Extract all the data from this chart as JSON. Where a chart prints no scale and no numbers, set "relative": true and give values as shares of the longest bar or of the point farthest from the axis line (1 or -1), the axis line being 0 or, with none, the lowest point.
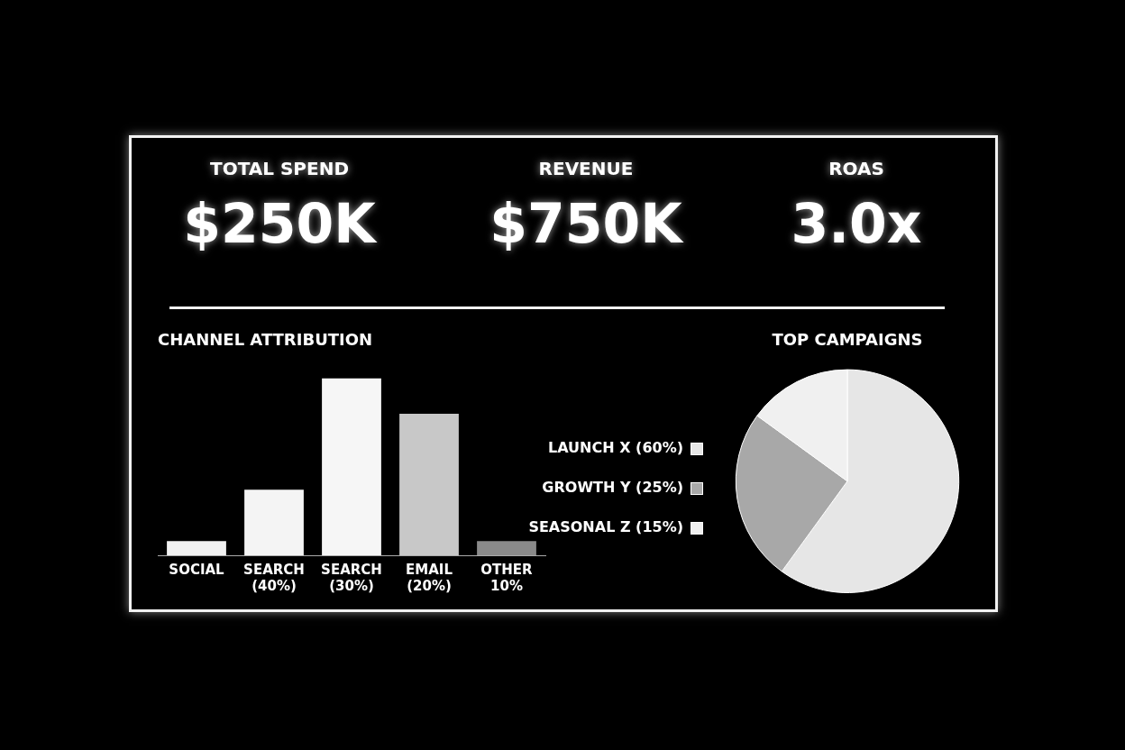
{
  "chart_data": [
    {
      "type": "other",
      "annotations": [
        "TOTAL SPEND",
        "$250K",
        "REVENUE",
        "$750K",
        "ROAS",
        "3.0x"
      ]
    },
    {
      "type": "bar",
      "title": "CHANNEL ATTRIBUTION",
      "relative": true,
      "categories": [
        "SOCIAL",
        "SEARCH (40%)",
        "SEARCH (30%)",
        "EMAIL (20%)",
        "OTHER 10%"
      ],
      "values": [
        0.08,
        0.37,
        1,
        0.8,
        0.08
      ],
      "colors": [
        "#f2f2f2",
        "#f4f4f4",
        "#f6f6f6",
        "#c8c8c8",
        "#8a8a8a"
      ],
      "legend": false
    },
    {
      "type": "pie",
      "title": "TOP CAMPAIGNS",
      "categories": [
        "LAUNCH X (60%)",
        "GROWTH Y (25%)",
        "SEASONAL Z (15%)"
      ],
      "values": [
        60,
        25,
        15
      ],
      "colors": [
        "#e6e6e6",
        "#a8a8a8",
        "#f0f0f0"
      ],
      "legend": "left"
    }
  ]
}
